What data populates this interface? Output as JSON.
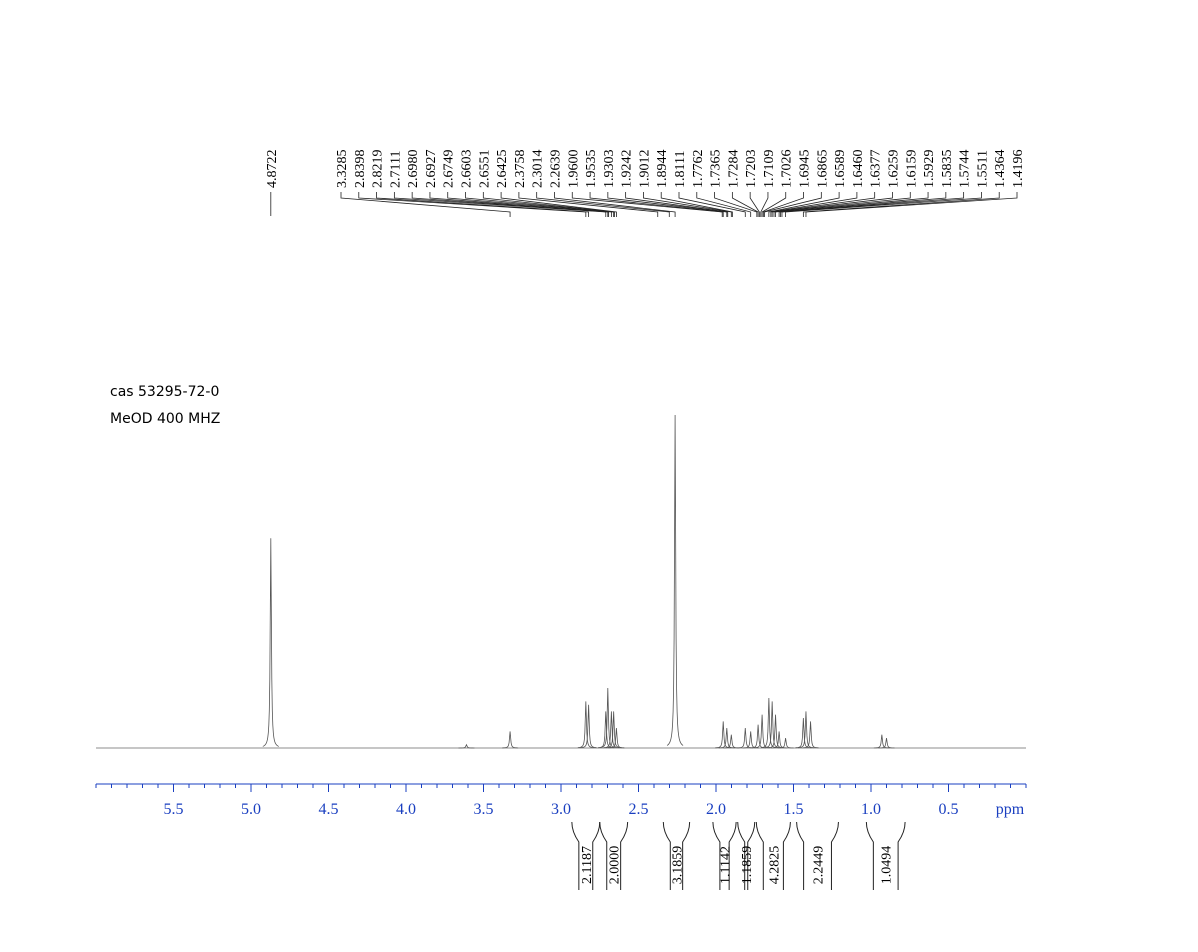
{
  "chart_data": {
    "type": "nmr",
    "annotations": [
      "cas  53295-72-0",
      "MeOD 400 MHZ"
    ],
    "x_label": "ppm",
    "xlim": [
      6,
      0
    ],
    "xticks": [
      5.5,
      {
        "value": 5,
        "label": "5.0"
      },
      4.5,
      {
        "value": 4,
        "label": "4.0"
      },
      3.5,
      {
        "value": 3,
        "label": "3.0"
      },
      2.5,
      {
        "value": 2,
        "label": "2.0"
      },
      1.5,
      {
        "value": 1,
        "label": "1.0"
      },
      0.5
    ],
    "xticks_minor": [
      6,
      5.9,
      5.8,
      5.7,
      5.6,
      5.4,
      5.3,
      5.2,
      5.1,
      4.9,
      4.8,
      4.7,
      4.6,
      4.4,
      4.3,
      4.2,
      4.1,
      3.9,
      3.8,
      3.7,
      3.6,
      3.4,
      3.3,
      3.2,
      3.1,
      2.9,
      2.8,
      2.7,
      2.6,
      2.4,
      2.3,
      2.2,
      2.1,
      1.9,
      1.8,
      1.7,
      1.6,
      1.4,
      1.3,
      1.2,
      1.1,
      0.9,
      0.8,
      0.7,
      0.6,
      0.4,
      0.3,
      0.2,
      0.1,
      0
    ],
    "ylim": [
      0,
      100
    ],
    "peak_labels": [
      4.8722,
      3.3285,
      2.8398,
      2.8219,
      2.7111,
      {
        "value": 2.698,
        "label": "2.6980"
      },
      2.6927,
      2.6749,
      2.6603,
      2.6551,
      2.6425,
      2.3758,
      2.3014,
      2.2639,
      {
        "value": 1.96,
        "label": "1.9600"
      },
      1.9535,
      1.9303,
      1.9242,
      1.9012,
      1.8944,
      1.8111,
      1.7762,
      1.7365,
      1.7284,
      1.7203,
      1.7109,
      1.7026,
      1.6945,
      1.6865,
      1.6589,
      {
        "value": 1.646,
        "label": "1.6460"
      },
      1.6377,
      1.6259,
      1.6159,
      1.5929,
      1.5835,
      1.5744,
      1.5511,
      1.4364,
      1.4196
    ],
    "signals": {
      "x": [
        4.8722,
        3.61,
        3.3285,
        2.8398,
        2.8219,
        2.7111,
        2.698,
        2.6749,
        2.6603,
        2.6425,
        2.2639,
        1.9535,
        1.9303,
        1.9012,
        1.8111,
        1.7762,
        1.7284,
        1.7026,
        1.6589,
        1.6377,
        1.6159,
        1.5929,
        1.5511,
        1.4364,
        1.4196,
        1.39,
        0.93,
        0.9
      ],
      "y": [
        63,
        1,
        5,
        14,
        13,
        11,
        18,
        11,
        11,
        6,
        100,
        8,
        6,
        4,
        6,
        5,
        7,
        10,
        15,
        14,
        10,
        5,
        3,
        9,
        11,
        8,
        4,
        3
      ]
    },
    "integrals": [
      {
        "from": 2.93,
        "to": 2.75,
        "value": 2.1187
      },
      {
        "from": 2.75,
        "to": 2.57,
        "value": 2,
        "label": "2.0000"
      },
      {
        "from": 2.34,
        "to": 2.17,
        "value": 3.1859
      },
      {
        "from": 2.02,
        "to": 1.87,
        "value": 1.1142
      },
      {
        "from": 1.86,
        "to": 1.75,
        "value": 1.1859
      },
      {
        "from": 1.74,
        "to": 1.52,
        "value": 4.2825
      },
      {
        "from": 1.48,
        "to": 1.21,
        "value": 2.2449
      },
      {
        "from": 1.03,
        "to": 0.78,
        "value": 1.0494
      }
    ]
  }
}
